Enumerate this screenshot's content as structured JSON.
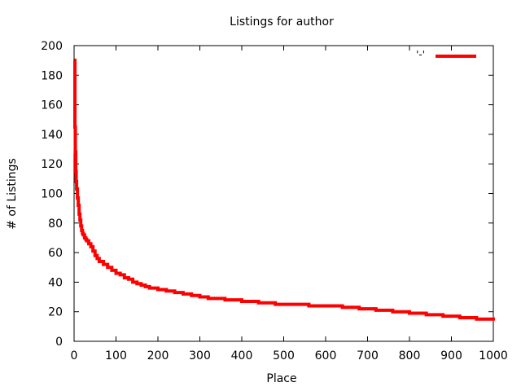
{
  "chart_data": {
    "type": "line",
    "title": "Listings for author",
    "xlabel": "Place",
    "ylabel": "# of Listings",
    "xlim": [
      0,
      1000
    ],
    "ylim": [
      0,
      200
    ],
    "x_ticks": [
      0,
      100,
      200,
      300,
      400,
      500,
      600,
      700,
      800,
      900,
      1000
    ],
    "y_ticks": [
      0,
      20,
      40,
      60,
      80,
      100,
      120,
      140,
      160,
      180,
      200
    ],
    "grid": false,
    "legend_position": "top-right",
    "series": [
      {
        "name": "'-'",
        "color": "#ff0000",
        "style": "steps",
        "x": [
          1,
          2,
          3,
          4,
          5,
          6,
          8,
          10,
          12,
          14,
          16,
          18,
          20,
          22,
          25,
          28,
          30,
          35,
          40,
          45,
          50,
          55,
          60,
          70,
          80,
          90,
          100,
          110,
          120,
          130,
          140,
          150,
          160,
          170,
          180,
          190,
          200,
          220,
          240,
          260,
          280,
          300,
          320,
          340,
          360,
          380,
          400,
          420,
          440,
          460,
          480,
          500,
          530,
          560,
          590,
          620,
          640,
          660,
          680,
          700,
          720,
          740,
          760,
          780,
          800,
          820,
          840,
          860,
          880,
          900,
          920,
          940,
          960,
          980,
          1000
        ],
        "values": [
          190,
          145,
          128,
          115,
          108,
          103,
          97,
          92,
          86,
          82,
          78,
          75,
          73,
          72,
          70,
          69,
          68,
          66,
          64,
          61,
          58,
          56,
          54,
          52,
          50,
          48,
          46,
          45,
          43,
          42,
          40,
          39,
          38,
          37,
          36,
          36,
          35,
          34,
          33,
          32,
          31,
          30,
          29,
          29,
          28,
          28,
          27,
          27,
          26,
          26,
          25,
          25,
          25,
          24,
          24,
          24,
          23,
          23,
          22,
          22,
          21,
          21,
          20,
          20,
          19,
          19,
          18,
          18,
          17,
          17,
          16,
          16,
          15,
          15,
          14
        ]
      }
    ]
  }
}
